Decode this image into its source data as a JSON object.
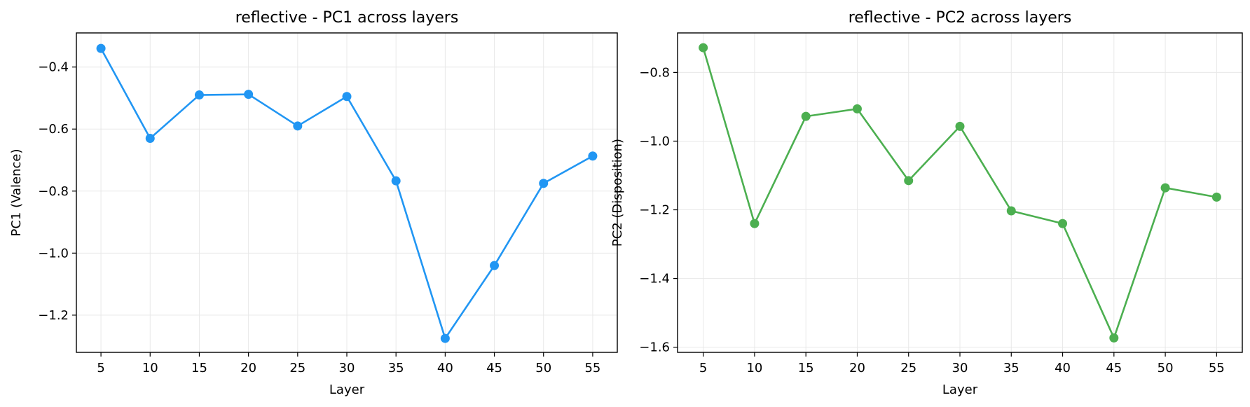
{
  "chart_data": [
    {
      "type": "line",
      "title": "reflective - PC1 across layers",
      "xlabel": "Layer",
      "ylabel": "PC1 (Valence)",
      "x": [
        5,
        10,
        15,
        20,
        25,
        30,
        35,
        40,
        45,
        50,
        55
      ],
      "xticks": [
        "5",
        "10",
        "15",
        "20",
        "25",
        "30",
        "35",
        "40",
        "45",
        "50",
        "55"
      ],
      "xlim": [
        2.5,
        57.5
      ],
      "ylim": [
        -1.32,
        -0.29
      ],
      "yticks": [
        -0.4,
        -0.6,
        -0.8,
        -1.0,
        -1.2
      ],
      "ytick_labels": [
        "−0.4",
        "−0.6",
        "−0.8",
        "−1.0",
        "−1.2"
      ],
      "grid": true,
      "series": [
        {
          "color": "#2196F3",
          "marker": "circle",
          "values": [
            -0.34,
            -0.63,
            -0.49,
            -0.488,
            -0.59,
            -0.495,
            -0.767,
            -1.275,
            -1.04,
            -0.775,
            -0.687
          ]
        }
      ]
    },
    {
      "type": "line",
      "title": "reflective - PC2 across layers",
      "xlabel": "Layer",
      "ylabel": "PC2 (Disposition)",
      "x": [
        5,
        10,
        15,
        20,
        25,
        30,
        35,
        40,
        45,
        50,
        55
      ],
      "xticks": [
        "5",
        "10",
        "15",
        "20",
        "25",
        "30",
        "35",
        "40",
        "45",
        "50",
        "55"
      ],
      "xlim": [
        2.5,
        57.5
      ],
      "ylim": [
        -1.615,
        -0.685
      ],
      "yticks": [
        -0.8,
        -1.0,
        -1.2,
        -1.4,
        -1.6
      ],
      "ytick_labels": [
        "−0.8",
        "−1.0",
        "−1.2",
        "−1.4",
        "−1.6"
      ],
      "grid": true,
      "series": [
        {
          "color": "#4CAF50",
          "marker": "circle",
          "values": [
            -0.728,
            -1.24,
            -0.928,
            -0.906,
            -1.115,
            -0.957,
            -1.203,
            -1.24,
            -1.573,
            -1.136,
            -1.163
          ]
        }
      ]
    }
  ]
}
